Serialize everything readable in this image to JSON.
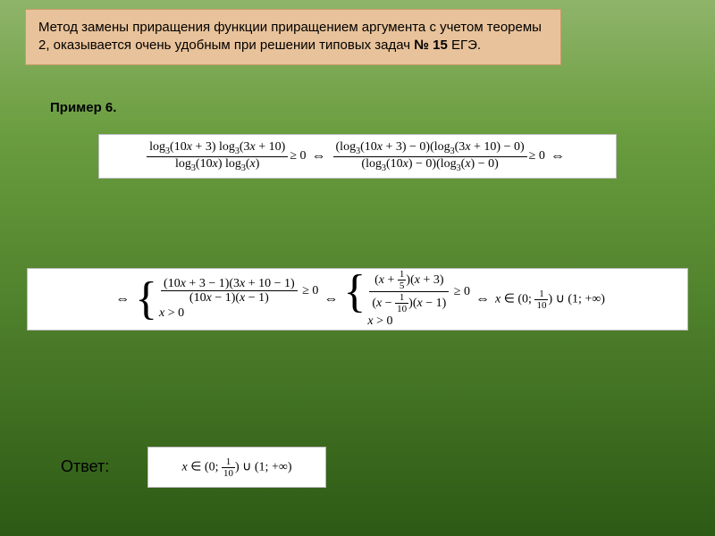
{
  "header": {
    "text": "Метод замены приращения функции приращением аргумента с учетом теоремы 2, оказывается очень удобным при решении типовых задач ",
    "bold": "№ 15",
    "tail": " ЕГЭ."
  },
  "example_label": "Пример 6.",
  "answer_label": "Ответ:",
  "formula1": {
    "left_num": "log₃(10x + 3) log₃(3x + 10)",
    "left_den": "log₃(10x) log₃(x)",
    "rel": "≥ 0",
    "imp": "⇔",
    "right_num": "(log₃(10x + 3) − 0)(log₃(3x + 10) − 0)",
    "right_den": "(log₃(10x) − 0)(log₃(x) − 0)"
  },
  "formula2": {
    "sys1_num": "(10x + 3 − 1)(3x + 10 − 1)",
    "sys1_den": "(10x − 1)(x − 1)",
    "sys1_rel": "≥ 0",
    "sys1_cond": "x > 0",
    "sys2_num_a": "(x + ",
    "sys2_num_frac_n": "1",
    "sys2_num_frac_d": "5",
    "sys2_num_b": ")(x + 3)",
    "sys2_den_a": "(x − ",
    "sys2_den_frac_n": "1",
    "sys2_den_frac_d": "10",
    "sys2_den_b": ")(x − 1)",
    "sys2_rel": "≥ 0",
    "sys2_cond": "x > 0",
    "result_a": "x ∈ (0; ",
    "result_frac_n": "1",
    "result_frac_d": "10",
    "result_b": ") ∪ (1; +∞)",
    "imp": "⇔"
  },
  "formula3": {
    "a": "x ∈ (0; ",
    "frac_n": "1",
    "frac_d": "10",
    "b": ") ∪ (1; +∞)"
  },
  "colors": {
    "header_bg": "#e8c29a",
    "formula_bg": "#ffffff",
    "text": "#000000"
  }
}
